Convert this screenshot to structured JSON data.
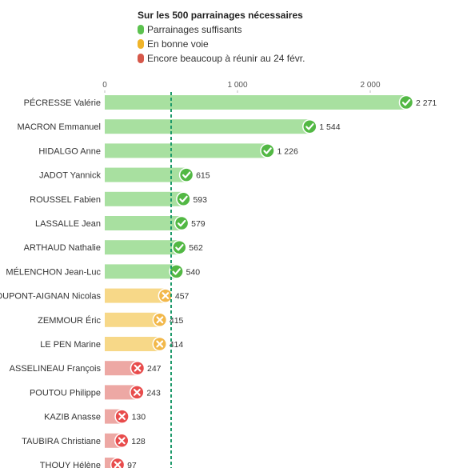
{
  "legend": {
    "title": "Sur les 500 parrainages nécessaires",
    "items": [
      {
        "label": "Parrainages suffisants",
        "color": "#5cc24f"
      },
      {
        "label": "En bonne voie",
        "color": "#f0b429"
      },
      {
        "label": "Encore beaucoup à réunir au 24 févr.",
        "color": "#d6584a"
      }
    ]
  },
  "chart_data": {
    "type": "bar",
    "orientation": "horizontal",
    "xlim": [
      0,
      2500
    ],
    "ticks": [
      {
        "value": 0,
        "label": "0"
      },
      {
        "value": 1000,
        "label": "1 000"
      },
      {
        "value": 2000,
        "label": "2 000"
      }
    ],
    "threshold": 500,
    "status_colors": {
      "ok": {
        "bar": "#a8e0a0",
        "marker": "#52b844"
      },
      "mid": {
        "bar": "#f7d888",
        "marker": "#f2b84b"
      },
      "low": {
        "bar": "#eda8a4",
        "marker": "#e84c4c"
      }
    },
    "rows": [
      {
        "category": "PÉCRESSE Valérie",
        "value": 2271,
        "label": "2 271",
        "status": "ok"
      },
      {
        "category": "MACRON Emmanuel",
        "value": 1544,
        "label": "1 544",
        "status": "ok"
      },
      {
        "category": "HIDALGO Anne",
        "value": 1226,
        "label": "1 226",
        "status": "ok"
      },
      {
        "category": "JADOT Yannick",
        "value": 615,
        "label": "615",
        "status": "ok"
      },
      {
        "category": "ROUSSEL Fabien",
        "value": 593,
        "label": "593",
        "status": "ok"
      },
      {
        "category": "LASSALLE Jean",
        "value": 579,
        "label": "579",
        "status": "ok"
      },
      {
        "category": "ARTHAUD Nathalie",
        "value": 562,
        "label": "562",
        "status": "ok"
      },
      {
        "category": "MÉLENCHON Jean-Luc",
        "value": 540,
        "label": "540",
        "status": "ok"
      },
      {
        "category": "DUPONT-AIGNAN Nicolas",
        "value": 457,
        "label": "457",
        "status": "mid"
      },
      {
        "category": "ZEMMOUR Éric",
        "value": 415,
        "label": "415",
        "status": "mid"
      },
      {
        "category": "LE PEN Marine",
        "value": 414,
        "label": "414",
        "status": "mid"
      },
      {
        "category": "ASSELINEAU François",
        "value": 247,
        "label": "247",
        "status": "low"
      },
      {
        "category": "POUTOU Philippe",
        "value": 243,
        "label": "243",
        "status": "low"
      },
      {
        "category": "KAZIB Anasse",
        "value": 130,
        "label": "130",
        "status": "low"
      },
      {
        "category": "TAUBIRA Christiane",
        "value": 128,
        "label": "128",
        "status": "low"
      },
      {
        "category": "THOUY Hélène",
        "value": 97,
        "label": "97",
        "status": "low"
      }
    ]
  }
}
